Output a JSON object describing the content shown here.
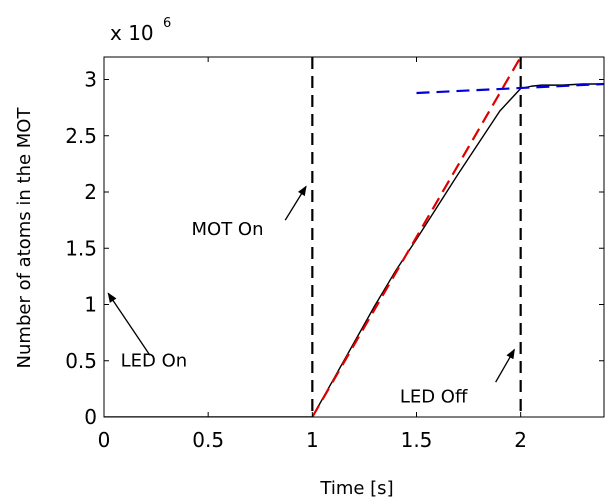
{
  "chart_data": {
    "type": "line",
    "title": "",
    "xlabel": "Time [s]",
    "ylabel": "Number of atoms in the MOT",
    "y_exponent_label": "x 10",
    "y_exponent_power": "6",
    "xlim": [
      0,
      2.4
    ],
    "ylim": [
      0,
      3.2
    ],
    "xticks": [
      0,
      0.5,
      1,
      1.5,
      2
    ],
    "xtick_labels": [
      "0",
      "0.5",
      "1",
      "1.5",
      "2"
    ],
    "yticks": [
      0,
      0.5,
      1,
      1.5,
      2,
      2.5,
      3
    ],
    "ytick_labels": [
      "0",
      "0.5",
      "1",
      "1.5",
      "2",
      "2.5",
      "3"
    ],
    "grid": false,
    "series": [
      {
        "role": "measured atom number",
        "color": "#000000",
        "style": "solid",
        "x": [
          0,
          1.0,
          1.1,
          1.2,
          1.3,
          1.4,
          1.5,
          1.6,
          1.7,
          1.8,
          1.9,
          1.95,
          2.0,
          2.05,
          2.1,
          2.2,
          2.3,
          2.4
        ],
        "y": [
          0,
          0,
          0.33,
          0.66,
          0.99,
          1.3,
          1.58,
          1.87,
          2.16,
          2.44,
          2.72,
          2.82,
          2.92,
          2.94,
          2.95,
          2.95,
          2.96,
          2.96
        ]
      },
      {
        "role": "linear loading fit",
        "color": "#e00000",
        "style": "dashed",
        "x": [
          1.0,
          2.0
        ],
        "y": [
          0,
          3.2
        ]
      },
      {
        "role": "saturation fit",
        "color": "#0000dd",
        "style": "dashed",
        "x": [
          1.5,
          2.4
        ],
        "y": [
          2.88,
          2.96
        ]
      }
    ],
    "vertical_lines": [
      {
        "x": 1.0,
        "color": "#000000",
        "style": "dashed"
      },
      {
        "x": 2.0,
        "color": "#000000",
        "style": "dashed"
      }
    ],
    "annotations": [
      {
        "text": "LED On",
        "text_x": 0.08,
        "text_y": 0.45,
        "arrow_from": [
          0.22,
          0.55
        ],
        "arrow_to": [
          0.02,
          1.1
        ]
      },
      {
        "text": "MOT On",
        "text_x": 0.42,
        "text_y": 1.62,
        "arrow_from": [
          0.87,
          1.75
        ],
        "arrow_to": [
          0.97,
          2.05
        ]
      },
      {
        "text": "LED Off",
        "text_x": 1.42,
        "text_y": 0.13,
        "arrow_from": [
          1.88,
          0.31
        ],
        "arrow_to": [
          1.97,
          0.6
        ]
      }
    ]
  }
}
